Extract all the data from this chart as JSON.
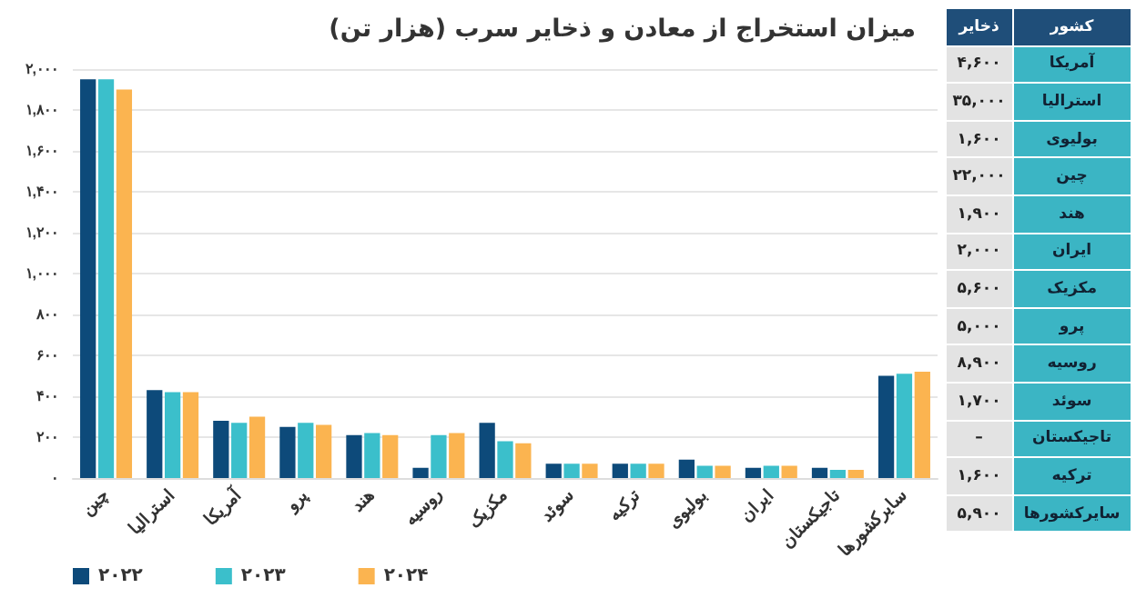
{
  "chart_data": [
    {
      "type": "bar",
      "title": "میزان استخراج از معادن و ذخایر سرب (هزار تن)",
      "categories": [
        "چین",
        "استرالیا",
        "آمریکا",
        "پرو",
        "هند",
        "روسیه",
        "مکزیک",
        "سوئد",
        "ترکیه",
        "بولیوی",
        "ایران",
        "تاجیکستان",
        "سایرکشورها"
      ],
      "series": [
        {
          "name": "۲۰۲۲",
          "color": "#0d4a7a",
          "values": [
            1950,
            430,
            280,
            250,
            210,
            50,
            270,
            70,
            70,
            90,
            50,
            50,
            500
          ]
        },
        {
          "name": "۲۰۲۳",
          "color": "#3bbfcb",
          "values": [
            1950,
            420,
            270,
            270,
            220,
            210,
            180,
            70,
            70,
            60,
            60,
            40,
            510
          ]
        },
        {
          "name": "۲۰۲۴",
          "color": "#fbb450",
          "values": [
            1900,
            420,
            300,
            260,
            210,
            220,
            170,
            70,
            70,
            60,
            60,
            40,
            520
          ]
        }
      ],
      "ylim": [
        0,
        2000
      ],
      "yticks": [
        {
          "value": 0,
          "label": "۰"
        },
        {
          "value": 200,
          "label": "۲۰۰"
        },
        {
          "value": 400,
          "label": "۴۰۰"
        },
        {
          "value": 600,
          "label": "۶۰۰"
        },
        {
          "value": 800,
          "label": "۸۰۰"
        },
        {
          "value": 1000,
          "label": "۱,۰۰۰"
        },
        {
          "value": 1200,
          "label": "۱,۲۰۰"
        },
        {
          "value": 1400,
          "label": "۱,۴۰۰"
        },
        {
          "value": 1600,
          "label": "۱,۶۰۰"
        },
        {
          "value": 1800,
          "label": "۱,۸۰۰"
        },
        {
          "value": 2000,
          "label": "۲,۰۰۰"
        }
      ],
      "grid": "y",
      "legend": "bottom left"
    },
    {
      "type": "other",
      "xlabel": "کشور",
      "ylabel": "ذخایر",
      "categories": [
        "آمریکا",
        "استرالیا",
        "بولیوی",
        "چین",
        "هند",
        "ایران",
        "مکزیک",
        "پرو",
        "روسیه",
        "سوئد",
        "تاجیکستان",
        "ترکیه",
        "سایرکشورها"
      ],
      "value_labels": [
        "۴,۶۰۰",
        "۳۵,۰۰۰",
        "۱,۶۰۰",
        "۲۲,۰۰۰",
        "۱,۹۰۰",
        "۲,۰۰۰",
        "۵,۶۰۰",
        "۵,۰۰۰",
        "۸,۹۰۰",
        "۱,۷۰۰",
        "–",
        "۱,۶۰۰",
        "۵,۹۰۰"
      ]
    }
  ]
}
